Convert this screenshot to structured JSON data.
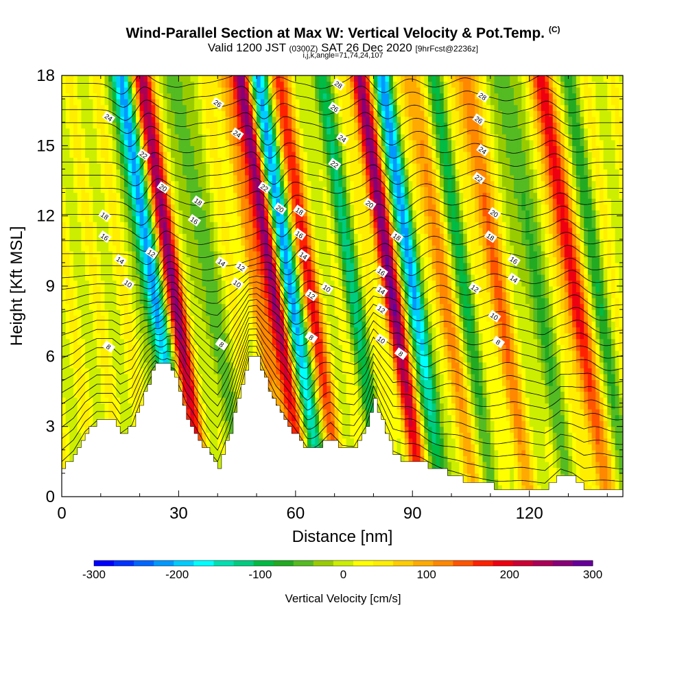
{
  "title": {
    "main": "Wind-Parallel Section at Max W: Vertical Velocity & Pot.Temp.",
    "copyright": "(C)",
    "valid_prefix": "Valid 1200 JST",
    "valid_utc": "(0300Z)",
    "valid_date": "SAT 26 Dec 2020",
    "forecast": "[9hrFcst@2236z]",
    "indices": "i,j,k,angle=71,74,24,107"
  },
  "chart_data": {
    "type": "heatmap",
    "xlabel": "Distance [nm]",
    "ylabel": "Height [Kft MSL]",
    "xlim": [
      0,
      144
    ],
    "ylim": [
      0,
      18
    ],
    "xticks": [
      "0",
      "30",
      "60",
      "90",
      "120"
    ],
    "yticks": [
      "0",
      "3",
      "6",
      "9",
      "12",
      "15",
      "18"
    ],
    "colorbar": {
      "title": "Vertical Velocity [cm/s]",
      "range": [
        -300,
        300
      ],
      "tick_labels": [
        "-300",
        "-200",
        "-100",
        "0",
        "100",
        "200",
        "300"
      ],
      "colors": [
        "#0000ff",
        "#0033ff",
        "#0066ff",
        "#0099ff",
        "#00ccff",
        "#00ffff",
        "#00e0b0",
        "#00cc80",
        "#00bb44",
        "#22aa22",
        "#55bb22",
        "#99cc00",
        "#ccee00",
        "#ffff00",
        "#ffee00",
        "#ffcc00",
        "#ffaa00",
        "#ff8800",
        "#ff5500",
        "#ff2200",
        "#ee0011",
        "#cc0033",
        "#aa0055",
        "#880077",
        "#660099"
      ]
    },
    "vertical_velocity_bands": [
      {
        "x": 26,
        "w_peak": -260
      },
      {
        "x": 31,
        "w_peak": 240
      },
      {
        "x": 40,
        "w_peak": -90
      },
      {
        "x": 52,
        "w_peak": 80
      },
      {
        "x": 57,
        "w_peak": 280
      },
      {
        "x": 61,
        "w_peak": -270
      },
      {
        "x": 66,
        "w_peak": 160
      },
      {
        "x": 77,
        "w_peak": -120
      },
      {
        "x": 87,
        "w_peak": 250
      },
      {
        "x": 93,
        "w_peak": -220
      },
      {
        "x": 100,
        "w_peak": 110
      },
      {
        "x": 106,
        "w_peak": -90
      },
      {
        "x": 114,
        "w_peak": 130
      },
      {
        "x": 124,
        "w_peak": -100
      },
      {
        "x": 134,
        "w_peak": 200
      },
      {
        "x": 140,
        "w_peak": -80
      }
    ],
    "terrain": [
      {
        "x": 0,
        "h": 1.3
      },
      {
        "x": 3,
        "h": 1.8
      },
      {
        "x": 6,
        "h": 2.7
      },
      {
        "x": 9,
        "h": 3.2
      },
      {
        "x": 13,
        "h": 3.2
      },
      {
        "x": 15,
        "h": 2.6
      },
      {
        "x": 18,
        "h": 3.0
      },
      {
        "x": 21,
        "h": 4.5
      },
      {
        "x": 24,
        "h": 5.8
      },
      {
        "x": 27,
        "h": 5.6
      },
      {
        "x": 29,
        "h": 5.0
      },
      {
        "x": 32,
        "h": 3.4
      },
      {
        "x": 35,
        "h": 2.5
      },
      {
        "x": 38,
        "h": 1.7
      },
      {
        "x": 40,
        "h": 1.3
      },
      {
        "x": 43,
        "h": 2.8
      },
      {
        "x": 46,
        "h": 4.8
      },
      {
        "x": 48,
        "h": 6.1
      },
      {
        "x": 50,
        "h": 6.0
      },
      {
        "x": 52,
        "h": 5.0
      },
      {
        "x": 55,
        "h": 3.8
      },
      {
        "x": 58,
        "h": 3.0
      },
      {
        "x": 61,
        "h": 2.4
      },
      {
        "x": 63,
        "h": 2.0
      },
      {
        "x": 66,
        "h": 2.2
      },
      {
        "x": 69,
        "h": 2.5
      },
      {
        "x": 72,
        "h": 2.0
      },
      {
        "x": 75,
        "h": 2.0
      },
      {
        "x": 78,
        "h": 3.0
      },
      {
        "x": 80,
        "h": 4.2
      },
      {
        "x": 82,
        "h": 3.2
      },
      {
        "x": 85,
        "h": 1.8
      },
      {
        "x": 88,
        "h": 1.5
      },
      {
        "x": 92,
        "h": 1.4
      },
      {
        "x": 96,
        "h": 1.2
      },
      {
        "x": 100,
        "h": 0.9
      },
      {
        "x": 104,
        "h": 0.6
      },
      {
        "x": 108,
        "h": 0.5
      },
      {
        "x": 112,
        "h": 0.4
      },
      {
        "x": 118,
        "h": 0.4
      },
      {
        "x": 124,
        "h": 0.3
      },
      {
        "x": 128,
        "h": 1.0
      },
      {
        "x": 131,
        "h": 0.8
      },
      {
        "x": 134,
        "h": 0.4
      },
      {
        "x": 144,
        "h": 0.4
      }
    ],
    "isentrope_labels": [
      {
        "x": 12,
        "y": 16.2,
        "text": "24"
      },
      {
        "x": 21,
        "y": 14.6,
        "text": "22"
      },
      {
        "x": 26,
        "y": 13.2,
        "text": "20"
      },
      {
        "x": 35,
        "y": 12.6,
        "text": "18"
      },
      {
        "x": 34,
        "y": 11.8,
        "text": "16"
      },
      {
        "x": 11,
        "y": 12.0,
        "text": "18"
      },
      {
        "x": 11,
        "y": 11.1,
        "text": "16"
      },
      {
        "x": 15,
        "y": 10.1,
        "text": "14"
      },
      {
        "x": 23,
        "y": 10.4,
        "text": "12"
      },
      {
        "x": 17,
        "y": 9.1,
        "text": "10"
      },
      {
        "x": 12,
        "y": 6.4,
        "text": "8"
      },
      {
        "x": 40,
        "y": 16.8,
        "text": "26"
      },
      {
        "x": 45,
        "y": 15.5,
        "text": "24"
      },
      {
        "x": 52,
        "y": 13.2,
        "text": "22"
      },
      {
        "x": 56,
        "y": 12.3,
        "text": "20"
      },
      {
        "x": 61,
        "y": 12.2,
        "text": "18"
      },
      {
        "x": 61,
        "y": 11.2,
        "text": "16"
      },
      {
        "x": 62,
        "y": 10.3,
        "text": "14"
      },
      {
        "x": 41,
        "y": 10.0,
        "text": "14"
      },
      {
        "x": 46,
        "y": 9.8,
        "text": "12"
      },
      {
        "x": 45,
        "y": 9.1,
        "text": "10"
      },
      {
        "x": 41,
        "y": 6.5,
        "text": "8"
      },
      {
        "x": 71,
        "y": 17.6,
        "text": "28"
      },
      {
        "x": 70,
        "y": 16.6,
        "text": "26"
      },
      {
        "x": 72,
        "y": 15.3,
        "text": "24"
      },
      {
        "x": 70,
        "y": 14.2,
        "text": "22"
      },
      {
        "x": 79,
        "y": 12.5,
        "text": "20"
      },
      {
        "x": 86,
        "y": 11.1,
        "text": "18"
      },
      {
        "x": 82,
        "y": 9.6,
        "text": "16"
      },
      {
        "x": 82,
        "y": 8.8,
        "text": "14"
      },
      {
        "x": 82,
        "y": 8.0,
        "text": "12"
      },
      {
        "x": 82,
        "y": 6.7,
        "text": "10"
      },
      {
        "x": 87,
        "y": 6.1,
        "text": "8"
      },
      {
        "x": 64,
        "y": 8.6,
        "text": "12"
      },
      {
        "x": 68,
        "y": 8.9,
        "text": "10"
      },
      {
        "x": 64,
        "y": 6.8,
        "text": "8"
      },
      {
        "x": 108,
        "y": 17.1,
        "text": "28"
      },
      {
        "x": 107,
        "y": 16.1,
        "text": "26"
      },
      {
        "x": 108,
        "y": 14.8,
        "text": "24"
      },
      {
        "x": 107,
        "y": 13.6,
        "text": "22"
      },
      {
        "x": 111,
        "y": 12.1,
        "text": "20"
      },
      {
        "x": 110,
        "y": 11.1,
        "text": "18"
      },
      {
        "x": 116,
        "y": 10.1,
        "text": "16"
      },
      {
        "x": 116,
        "y": 9.3,
        "text": "14"
      },
      {
        "x": 106,
        "y": 8.9,
        "text": "12"
      },
      {
        "x": 111,
        "y": 7.7,
        "text": "10"
      },
      {
        "x": 112,
        "y": 6.6,
        "text": "8"
      }
    ]
  }
}
